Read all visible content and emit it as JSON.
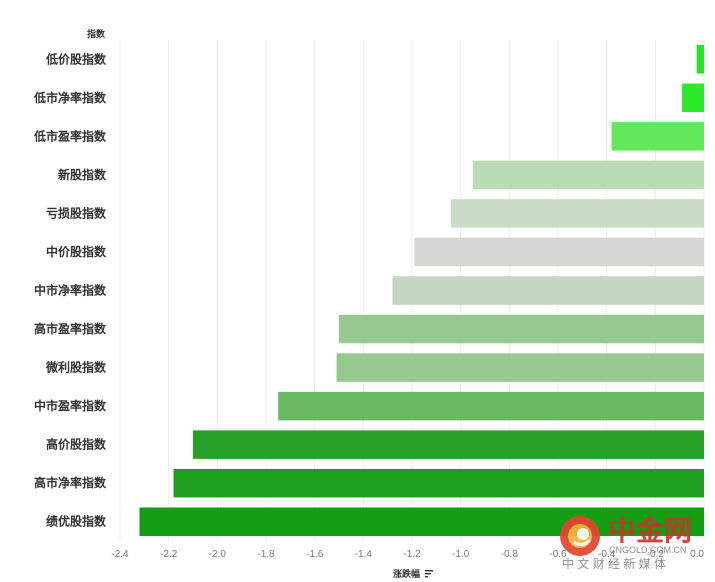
{
  "chart_data": {
    "type": "bar",
    "orientation": "horizontal",
    "ylabel": "指数",
    "xlabel": "涨跌幅",
    "xlim": [
      -2.4,
      0
    ],
    "xticks": [
      "-2.4",
      "-2.2",
      "-2.0",
      "-1.8",
      "-1.6",
      "-1.4",
      "-1.2",
      "-1.0",
      "-0.8",
      "-0.6",
      "-0.4",
      "-0.2",
      "0.0"
    ],
    "grid": true,
    "categories": [
      "低价股指数",
      "低市净率指数",
      "低市盈率指数",
      "新股指数",
      "亏损股指数",
      "中价股指数",
      "中市净率指数",
      "高市盈率指数",
      "微利股指数",
      "中市盈率指数",
      "高价股指数",
      "高市净率指数",
      "绩优股指数"
    ],
    "values": [
      -0.03,
      -0.09,
      -0.38,
      -0.95,
      -1.04,
      -1.19,
      -1.28,
      -1.5,
      -1.51,
      -1.75,
      -2.1,
      -2.18,
      -2.32
    ],
    "colors": [
      "#2ddf2d",
      "#2ee82e",
      "#62e85a",
      "#b8dcb4",
      "#c8dcc6",
      "#d4d7d2",
      "#c4d6c2",
      "#95c98f",
      "#95c98f",
      "#69b862",
      "#27a127",
      "#1e9e1e",
      "#139d13"
    ]
  },
  "watermark": {
    "logo_text": "中金网",
    "url": "CNGOLD.COM.CN",
    "tagline": "中 文 财 经 新 媒 体"
  }
}
